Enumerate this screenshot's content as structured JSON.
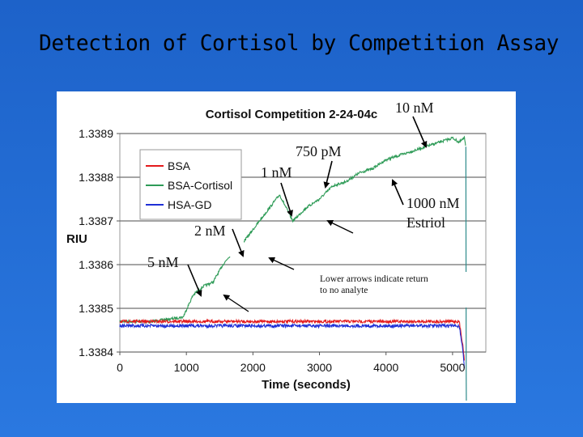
{
  "slide": {
    "title": "Detection of Cortisol by Competition Assay"
  },
  "chart_data": {
    "type": "line",
    "title": "Cortisol Competition 2-24-04c",
    "xlabel": "Time (seconds)",
    "ylabel": "RIU",
    "xlim": [
      0,
      5500
    ],
    "ylim": [
      1.3384,
      1.3389
    ],
    "xticks": [
      "0",
      "1000",
      "2000",
      "3000",
      "4000",
      "5000"
    ],
    "yticks": [
      "1.3384",
      "1.3385",
      "1.3386",
      "1.3387",
      "1.3388",
      "1.3389"
    ],
    "grid": "horizontal",
    "legend_placement": "upper-left",
    "series": [
      {
        "name": "BSA",
        "color": "#e41a1c",
        "x": [
          0,
          500,
          1000,
          1500,
          2000,
          2500,
          3000,
          3500,
          4000,
          4500,
          5100,
          5150,
          5180
        ],
        "y": [
          1.33847,
          1.33847,
          1.33847,
          1.33847,
          1.33847,
          1.33847,
          1.33847,
          1.33847,
          1.33847,
          1.33847,
          1.33847,
          1.33842,
          1.33838
        ]
      },
      {
        "name": "BSA-Cortisol",
        "color": "#2e9b57",
        "x": [
          0,
          500,
          950,
          1100,
          1250,
          1400,
          1550,
          1700,
          1850,
          2000,
          2200,
          2400,
          2600,
          2800,
          3000,
          3200,
          3400,
          3600,
          3800,
          4000,
          4200,
          4400,
          4600,
          4800,
          5000,
          5100,
          5180,
          5200
        ],
        "y": [
          1.33847,
          1.33847,
          1.33848,
          1.33853,
          1.33855,
          1.33856,
          1.3386,
          1.33863,
          1.33865,
          1.33868,
          1.33872,
          1.33876,
          1.3387,
          1.33873,
          1.33875,
          1.33878,
          1.33879,
          1.33881,
          1.33882,
          1.33884,
          1.33885,
          1.33886,
          1.33887,
          1.33888,
          1.33889,
          1.33888,
          1.33889,
          1.33887
        ]
      },
      {
        "name": "HSA-GD",
        "color": "#1f2fd6",
        "x": [
          0,
          500,
          1000,
          1500,
          2000,
          2500,
          3000,
          3500,
          4000,
          4500,
          5100,
          5150,
          5180
        ],
        "y": [
          1.33846,
          1.33846,
          1.33846,
          1.33846,
          1.33846,
          1.33846,
          1.33846,
          1.33846,
          1.33846,
          1.33846,
          1.33846,
          1.33841,
          1.33836
        ]
      }
    ],
    "annotations": [
      {
        "label": "10 nM",
        "x": 4400,
        "y": 1.33887
      },
      {
        "label": "750 pM",
        "x": 2900,
        "y": 1.33877
      },
      {
        "label": "1 nM",
        "x": 2400,
        "y": 1.33873
      },
      {
        "label": "1000 nM",
        "x": 4000,
        "y": 1.33885
      },
      {
        "label": "Estriol",
        "x": 4000,
        "y": 1.33885
      },
      {
        "label": "2 nM",
        "x": 1800,
        "y": 1.33864
      },
      {
        "label": "5 nM",
        "x": 1100,
        "y": 1.33853
      },
      {
        "label": "Lower arrows indicate return",
        "x": 3000,
        "y": 1.33865
      },
      {
        "label": "to no analyte",
        "x": 3000,
        "y": 1.33865
      }
    ]
  }
}
